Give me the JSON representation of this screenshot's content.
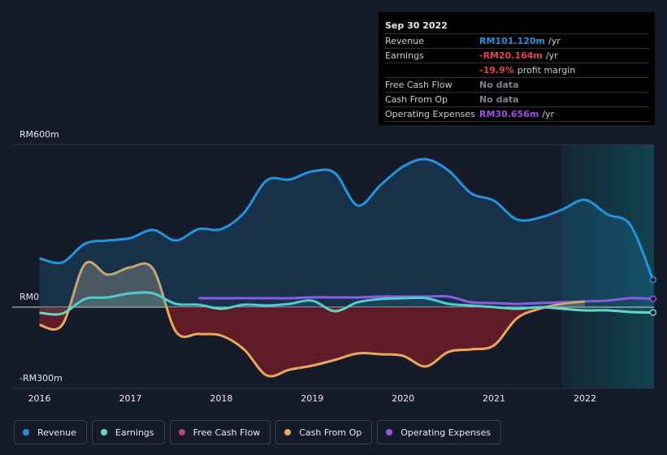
{
  "chart_data": {
    "type": "line",
    "x": [
      2016,
      2016.25,
      2016.5,
      2016.75,
      2017,
      2017.25,
      2017.5,
      2017.75,
      2018,
      2018.25,
      2018.5,
      2018.75,
      2019,
      2019.25,
      2019.5,
      2019.75,
      2020,
      2020.25,
      2020.5,
      2020.75,
      2021,
      2021.25,
      2021.5,
      2021.75,
      2022,
      2022.25,
      2022.5,
      2022.75
    ],
    "xlim": [
      2015.7,
      2022.76
    ],
    "xticks": [
      2016,
      2017,
      2018,
      2019,
      2020,
      2021,
      2022
    ],
    "ylim": [
      -300,
      600
    ],
    "yticks": [
      {
        "value": 600,
        "label": "RM600m"
      },
      {
        "value": 0,
        "label": "RM0"
      },
      {
        "value": -300,
        "label": "-RM300m"
      }
    ],
    "grid": true,
    "series": [
      {
        "name": "Revenue",
        "color": "#2394df",
        "values": [
          180,
          165,
          234,
          246,
          255,
          285,
          246,
          288,
          288,
          348,
          468,
          471,
          501,
          495,
          375,
          450,
          519,
          546,
          504,
          420,
          393,
          324,
          330,
          360,
          396,
          342,
          303,
          101.12
        ]
      },
      {
        "name": "Earnings",
        "color": "#5fd8c5",
        "values": [
          -21,
          -24,
          30,
          36,
          51,
          51,
          12,
          9,
          -6,
          9,
          6,
          12,
          24,
          -15,
          18,
          30,
          33,
          33,
          12,
          6,
          0,
          -6,
          0,
          -6,
          -12,
          -12,
          -18,
          -20.164
        ]
      },
      {
        "name": "Free Cash Flow",
        "color": "#c1427c",
        "values": [
          null,
          null,
          null,
          null,
          null,
          null,
          null,
          null,
          null,
          null,
          null,
          null,
          null,
          null,
          null,
          null,
          null,
          null,
          null,
          null,
          null,
          null,
          null,
          null,
          null,
          null,
          null,
          null
        ]
      },
      {
        "name": "Cash From Op",
        "color": "#e9a85a",
        "values": [
          -66,
          -66,
          159,
          120,
          147,
          141,
          -90,
          -99,
          -105,
          -156,
          -252,
          -231,
          -216,
          -195,
          -171,
          -174,
          -180,
          -219,
          -165,
          -156,
          -141,
          -42,
          -6,
          12,
          21,
          null,
          null,
          null
        ]
      },
      {
        "name": "Operating Expenses",
        "color": "#9f50e8",
        "values": [
          null,
          null,
          null,
          null,
          null,
          null,
          null,
          33,
          33,
          33,
          33,
          33,
          36,
          36,
          36,
          39,
          39,
          39,
          39,
          18,
          15,
          12,
          15,
          18,
          21,
          24,
          33,
          30.656
        ]
      }
    ]
  },
  "tooltip": {
    "date": "Sep 30 2022",
    "rows": [
      {
        "label": "Revenue",
        "value": "RM101.120m",
        "unit": "/yr",
        "color": "#2394df"
      },
      {
        "label": "Earnings",
        "value": "-RM20.164m",
        "unit": "/yr",
        "color": "#e5424d"
      },
      {
        "label": "",
        "value": "-19.9%",
        "unit": "profit margin",
        "color": "#e5424d"
      },
      {
        "label": "Free Cash Flow",
        "value": "No data",
        "unit": "",
        "color": "#7d828c"
      },
      {
        "label": "Cash From Op",
        "value": "No data",
        "unit": "",
        "color": "#7d828c"
      },
      {
        "label": "Operating Expenses",
        "value": "RM30.656m",
        "unit": "/yr",
        "color": "#9f50e8"
      }
    ]
  }
}
